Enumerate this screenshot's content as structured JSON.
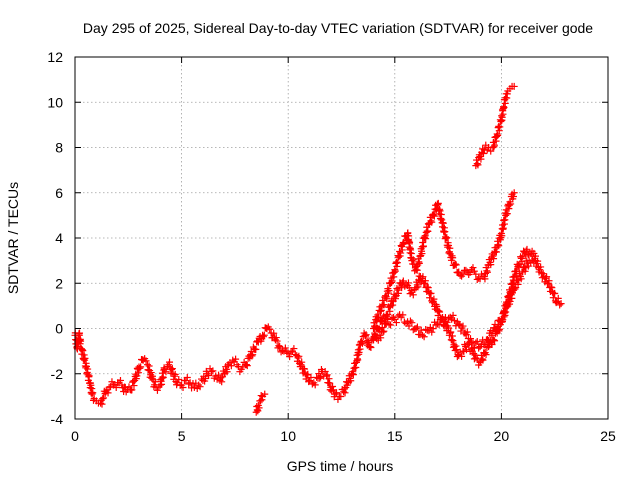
{
  "chart_data": {
    "type": "scatter",
    "title": "Day 295 of 2025, Sidereal Day-to-day VTEC variation (SDTVAR) for receiver gode",
    "xlabel": "GPS time / hours",
    "ylabel": "SDTVAR / TECUs",
    "xlim": [
      0,
      25
    ],
    "ylim": [
      -4,
      12
    ],
    "xticks": [
      0,
      5,
      10,
      15,
      20,
      25
    ],
    "yticks": [
      -4,
      -2,
      0,
      2,
      4,
      6,
      8,
      10,
      12
    ],
    "xtick_labels": [
      "0",
      "5",
      "10",
      "15",
      "20",
      "25"
    ],
    "ytick_labels": [
      "-4",
      "-2",
      "0",
      "2",
      "4",
      "6",
      "8",
      "10",
      "12"
    ],
    "grid": true,
    "marker": "plus",
    "color": "#ff0000",
    "series": [
      {
        "x": [
          0.0,
          0.1,
          0.2,
          0.3,
          0.45,
          0.7,
          0.8,
          0.9,
          1.0,
          1.1,
          1.2,
          1.3,
          1.45,
          1.6,
          1.8,
          2.0,
          2.2,
          2.4,
          2.6,
          2.8,
          3.0,
          3.2,
          3.4,
          3.6,
          3.8,
          4.0,
          4.2,
          4.4,
          4.6,
          4.8,
          5.0,
          5.2,
          5.4,
          5.6,
          5.8,
          6.0,
          6.2,
          6.4,
          6.6,
          6.8,
          7.0,
          7.2,
          7.4,
          7.6,
          7.8,
          8.0,
          8.2,
          8.4,
          8.6,
          8.8,
          9.0,
          9.2,
          9.4,
          9.6,
          9.8,
          10.0,
          10.2,
          10.4,
          10.6,
          10.8,
          11.0,
          11.2,
          11.4,
          11.6,
          11.8,
          12.0,
          12.2,
          12.4,
          12.6,
          12.8,
          13.0,
          13.2,
          13.4,
          13.6,
          13.8,
          14.0,
          14.2,
          14.4,
          14.6,
          14.8,
          15.0,
          15.2,
          15.4,
          15.6,
          15.8,
          16.0,
          16.2,
          16.4,
          16.6,
          16.8,
          17.0,
          17.2,
          17.4,
          17.6,
          17.8,
          18.0,
          18.2,
          18.4,
          18.6,
          18.8,
          19.0,
          19.2,
          19.4,
          19.6,
          19.8,
          20.0,
          20.2,
          20.4,
          20.6,
          20.8,
          21.0,
          21.2,
          21.4,
          21.6,
          21.8,
          22.0,
          22.2,
          22.4,
          22.6,
          22.8
        ],
        "y": [
          -0.3,
          -0.8,
          -0.3,
          -0.9,
          -1.4,
          -2.4,
          -2.9,
          -3.1,
          -3.2,
          -3.3,
          -3.3,
          -3.1,
          -2.8,
          -2.6,
          -2.5,
          -2.4,
          -2.5,
          -2.8,
          -2.7,
          -2.3,
          -1.7,
          -1.4,
          -1.6,
          -2.2,
          -2.6,
          -2.5,
          -1.8,
          -1.6,
          -2.0,
          -2.4,
          -2.5,
          -2.3,
          -2.4,
          -2.6,
          -2.5,
          -2.3,
          -2.0,
          -1.9,
          -2.1,
          -2.3,
          -2.0,
          -1.6,
          -1.4,
          -1.6,
          -1.8,
          -1.6,
          -1.3,
          -0.9,
          -0.6,
          -0.3,
          0.0,
          -0.2,
          -0.5,
          -0.8,
          -1.0,
          -1.1,
          -1.0,
          -1.2,
          -1.6,
          -2.0,
          -2.3,
          -2.4,
          -2.2,
          -1.9,
          -2.1,
          -2.6,
          -2.9,
          -3.0,
          -2.8,
          -2.4,
          -2.0,
          -1.5,
          -0.6,
          -0.3,
          -0.8,
          -0.5,
          0.0,
          0.3,
          0.6,
          1.0,
          1.4,
          1.8,
          2.1,
          1.9,
          1.6,
          1.8,
          2.3,
          2.0,
          1.6,
          1.2,
          0.8,
          0.4,
          0.1,
          -0.2,
          -0.8,
          -1.2,
          -1.0,
          -0.7,
          -0.9,
          -1.3,
          -1.5,
          -1.1,
          -0.8,
          -0.5,
          -0.2,
          0.3,
          0.9,
          1.6,
          2.3,
          2.8,
          3.2,
          3.5,
          3.3,
          3.0,
          2.6,
          2.3,
          2.0,
          1.6,
          1.2,
          1.1
        ]
      },
      {
        "x": [
          8.5,
          8.6,
          8.7,
          8.8,
          8.9
        ],
        "y": [
          -3.7,
          -3.4,
          -3.2,
          -3.0,
          -2.9
        ]
      },
      {
        "x": [
          14.0,
          14.2,
          14.4,
          14.6,
          14.8,
          15.0,
          15.2,
          15.4,
          15.6,
          15.8,
          16.0,
          16.2,
          16.4,
          16.6,
          16.8,
          17.0,
          17.2,
          17.4,
          17.6,
          17.8,
          18.0,
          18.2,
          18.4,
          18.6,
          18.8,
          19.0,
          19.2,
          19.4,
          19.6,
          19.8,
          20.0,
          20.2,
          20.4,
          20.6
        ],
        "y": [
          0.0,
          0.6,
          1.0,
          1.4,
          2.0,
          2.6,
          3.2,
          3.8,
          4.2,
          3.0,
          2.6,
          3.2,
          4.0,
          4.6,
          5.0,
          5.5,
          4.8,
          4.0,
          3.3,
          2.8,
          2.5,
          2.4,
          2.5,
          2.6,
          2.4,
          2.2,
          2.3,
          2.8,
          3.2,
          3.6,
          4.2,
          5.0,
          5.6,
          6.0
        ]
      },
      {
        "x": [
          18.8,
          19.0,
          19.2,
          19.4,
          19.6,
          19.8,
          20.0,
          20.1,
          20.2,
          20.3,
          20.4,
          20.5,
          20.6
        ],
        "y": [
          7.2,
          7.6,
          7.9,
          8.0,
          8.0,
          8.6,
          9.2,
          9.8,
          10.2,
          10.5,
          10.6,
          10.7,
          10.7
        ]
      },
      {
        "x": [
          14.0,
          14.3,
          14.6,
          15.0,
          15.3,
          15.6,
          16.0,
          16.3,
          16.6,
          17.0,
          17.3,
          17.6,
          18.0,
          18.3,
          18.6,
          19.0,
          19.3,
          19.6,
          20.0,
          20.3,
          20.6,
          21.0,
          21.3,
          21.6
        ],
        "y": [
          -0.5,
          -0.3,
          0.2,
          0.4,
          0.5,
          0.3,
          0.0,
          -0.3,
          -0.1,
          0.2,
          0.4,
          0.5,
          0.2,
          -0.2,
          -0.6,
          -0.8,
          -0.5,
          -0.1,
          0.4,
          1.0,
          1.8,
          2.5,
          3.0,
          3.2
        ]
      }
    ]
  }
}
